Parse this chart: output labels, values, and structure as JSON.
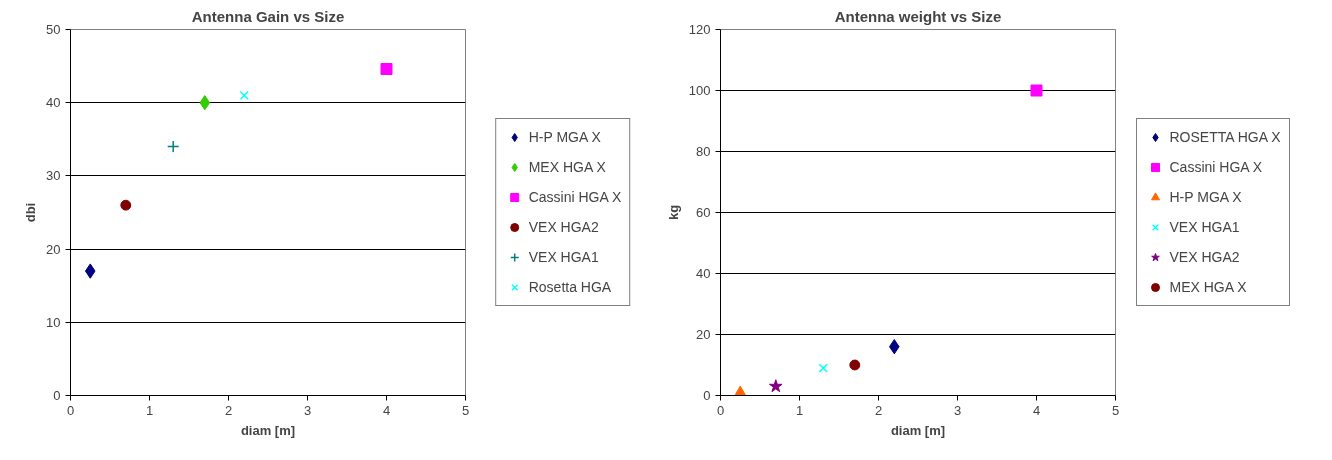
{
  "chart_data": [
    {
      "type": "scatter",
      "title": "Antenna Gain vs Size",
      "xlabel": "diam [m]",
      "ylabel": "dbi",
      "xlim": [
        0,
        5
      ],
      "xticks": [
        0,
        1,
        2,
        3,
        4,
        5
      ],
      "ylim": [
        0,
        50
      ],
      "yticks": [
        0,
        10,
        20,
        30,
        40,
        50
      ],
      "grid": "y",
      "legend": "right",
      "series": [
        {
          "name": "H-P MGA X",
          "color": "#000080",
          "marker": "diamond",
          "x": [
            0.25
          ],
          "values": [
            17
          ]
        },
        {
          "name": "MEX HGA X",
          "color": "#33cc00",
          "marker": "diamond",
          "x": [
            1.7
          ],
          "values": [
            40
          ]
        },
        {
          "name": "Cassini HGA X",
          "color": "#ff00ff",
          "marker": "square",
          "x": [
            4
          ],
          "values": [
            44.6
          ]
        },
        {
          "name": "VEX HGA2",
          "color": "#800000",
          "marker": "circle",
          "x": [
            0.7
          ],
          "values": [
            26
          ]
        },
        {
          "name": "VEX HGA1",
          "color": "#008080",
          "marker": "cross",
          "x": [
            1.3
          ],
          "values": [
            34
          ]
        },
        {
          "name": "Rosetta HGA",
          "color": "#00ffff",
          "marker": "x",
          "x": [
            2.2
          ],
          "values": [
            41
          ]
        }
      ]
    },
    {
      "type": "scatter",
      "title": "Antenna weight vs Size",
      "xlabel": "diam [m]",
      "ylabel": "kg",
      "xlim": [
        0,
        5
      ],
      "xticks": [
        0,
        1,
        2,
        3,
        4,
        5
      ],
      "ylim": [
        0,
        120
      ],
      "yticks": [
        0,
        20,
        40,
        60,
        80,
        100,
        120
      ],
      "grid": "y",
      "legend": "right",
      "series": [
        {
          "name": "ROSETTA HGA X",
          "color": "#000080",
          "marker": "diamond",
          "x": [
            2.2
          ],
          "values": [
            16
          ]
        },
        {
          "name": "Cassini HGA X",
          "color": "#ff00ff",
          "marker": "square",
          "x": [
            4
          ],
          "values": [
            100
          ]
        },
        {
          "name": "H-P MGA X",
          "color": "#ff6600",
          "marker": "triangle",
          "x": [
            0.25
          ],
          "values": [
            1
          ]
        },
        {
          "name": "VEX HGA1",
          "color": "#00ffff",
          "marker": "x",
          "x": [
            1.3
          ],
          "values": [
            9
          ]
        },
        {
          "name": "VEX HGA2",
          "color": "#800080",
          "marker": "star",
          "x": [
            0.7
          ],
          "values": [
            3
          ]
        },
        {
          "name": "MEX HGA X",
          "color": "#800000",
          "marker": "circle",
          "x": [
            1.7
          ],
          "values": [
            10
          ]
        }
      ]
    }
  ]
}
